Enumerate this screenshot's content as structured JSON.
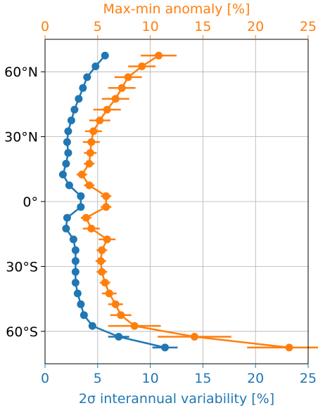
{
  "chart_data": {
    "type": "scatter",
    "top_axis": {
      "label": "Max-min anomaly [%]",
      "ticks": [
        "0",
        "5",
        "10",
        "15",
        "20",
        "25"
      ],
      "tick_values": [
        0,
        5,
        10,
        15,
        20,
        25
      ],
      "range": [
        0,
        25
      ],
      "color": "#ff7f0e"
    },
    "bottom_axis": {
      "label": "2σ interannual variability [%]",
      "ticks": [
        "0",
        "5",
        "10",
        "15",
        "20",
        "25"
      ],
      "tick_values": [
        0,
        5,
        10,
        15,
        20,
        25
      ],
      "range": [
        0,
        25
      ],
      "color": "#1f77b4"
    },
    "left_axis": {
      "ticks": [
        "60°N",
        "30°N",
        "0°",
        "30°S",
        "60°S"
      ],
      "tick_values": [
        60,
        30,
        0,
        -30,
        -60
      ],
      "range": [
        -75,
        75
      ]
    },
    "grid": true,
    "series": [
      {
        "color": "#1f77b4",
        "axis": "bottom",
        "points": [
          {
            "lat": 67.5,
            "x": 5.7,
            "err": 0
          },
          {
            "lat": 62.5,
            "x": 4.8,
            "err": 0
          },
          {
            "lat": 57.5,
            "x": 4.0,
            "err": 0
          },
          {
            "lat": 52.5,
            "x": 3.6,
            "err": 0
          },
          {
            "lat": 47.5,
            "x": 3.2,
            "err": 0
          },
          {
            "lat": 42.5,
            "x": 2.8,
            "err": 0
          },
          {
            "lat": 37.5,
            "x": 2.5,
            "err": 0
          },
          {
            "lat": 32.5,
            "x": 2.2,
            "err": 0
          },
          {
            "lat": 27.5,
            "x": 2.1,
            "err": 0
          },
          {
            "lat": 22.5,
            "x": 2.2,
            "err": 0
          },
          {
            "lat": 17.5,
            "x": 2.0,
            "err": 0
          },
          {
            "lat": 12.5,
            "x": 1.7,
            "err": 0
          },
          {
            "lat": 7.5,
            "x": 2.3,
            "err": 0
          },
          {
            "lat": 2.5,
            "x": 3.4,
            "err": 0
          },
          {
            "lat": -2.5,
            "x": 3.4,
            "err": 0
          },
          {
            "lat": -7.5,
            "x": 2.1,
            "err": 0
          },
          {
            "lat": -12.5,
            "x": 2.0,
            "err": 0
          },
          {
            "lat": -17.5,
            "x": 2.7,
            "err": 0
          },
          {
            "lat": -22.5,
            "x": 2.9,
            "err": 0
          },
          {
            "lat": -27.5,
            "x": 2.9,
            "err": 0
          },
          {
            "lat": -32.5,
            "x": 2.9,
            "err": 0
          },
          {
            "lat": -37.5,
            "x": 2.9,
            "err": 0
          },
          {
            "lat": -42.5,
            "x": 3.1,
            "err": 0
          },
          {
            "lat": -47.5,
            "x": 3.4,
            "err": 0
          },
          {
            "lat": -52.5,
            "x": 3.7,
            "err": 0
          },
          {
            "lat": -57.5,
            "x": 4.5,
            "err": 0
          },
          {
            "lat": -62.5,
            "x": 7.0,
            "err": 1.0
          },
          {
            "lat": -67.5,
            "x": 11.4,
            "err": 1.2
          }
        ]
      },
      {
        "color": "#ff7f0e",
        "axis": "top",
        "points": [
          {
            "lat": 67.5,
            "x": 10.8,
            "err": 1.7
          },
          {
            "lat": 62.5,
            "x": 9.2,
            "err": 1.3
          },
          {
            "lat": 57.5,
            "x": 7.9,
            "err": 1.3
          },
          {
            "lat": 52.5,
            "x": 7.3,
            "err": 1.3
          },
          {
            "lat": 47.5,
            "x": 6.7,
            "err": 1.3
          },
          {
            "lat": 42.5,
            "x": 5.9,
            "err": 1.3
          },
          {
            "lat": 37.5,
            "x": 5.2,
            "err": 1.0
          },
          {
            "lat": 32.5,
            "x": 4.6,
            "err": 0.8
          },
          {
            "lat": 27.5,
            "x": 4.4,
            "err": 0.8
          },
          {
            "lat": 22.5,
            "x": 4.3,
            "err": 0.6
          },
          {
            "lat": 17.5,
            "x": 4.2,
            "err": 0.5
          },
          {
            "lat": 12.5,
            "x": 3.5,
            "err": 0.5
          },
          {
            "lat": 7.5,
            "x": 4.2,
            "err": 0.5
          },
          {
            "lat": 2.5,
            "x": 5.8,
            "err": 0.5
          },
          {
            "lat": -2.5,
            "x": 5.8,
            "err": 0.5
          },
          {
            "lat": -7.5,
            "x": 3.9,
            "err": 0.5
          },
          {
            "lat": -12.5,
            "x": 4.4,
            "err": 0.8
          },
          {
            "lat": -17.5,
            "x": 5.9,
            "err": 0.8
          },
          {
            "lat": -22.5,
            "x": 5.4,
            "err": 0.5
          },
          {
            "lat": -27.5,
            "x": 5.3,
            "err": 0.5
          },
          {
            "lat": -32.5,
            "x": 5.4,
            "err": 0.5
          },
          {
            "lat": -37.5,
            "x": 5.7,
            "err": 0.5
          },
          {
            "lat": -42.5,
            "x": 6.1,
            "err": 0.7
          },
          {
            "lat": -47.5,
            "x": 6.7,
            "err": 0.7
          },
          {
            "lat": -52.5,
            "x": 7.2,
            "err": 1.0
          },
          {
            "lat": -57.5,
            "x": 8.5,
            "err": 2.5
          },
          {
            "lat": -62.5,
            "x": 14.2,
            "err": 3.5
          },
          {
            "lat": -67.5,
            "x": 23.2,
            "err": 4.0
          }
        ]
      }
    ]
  }
}
